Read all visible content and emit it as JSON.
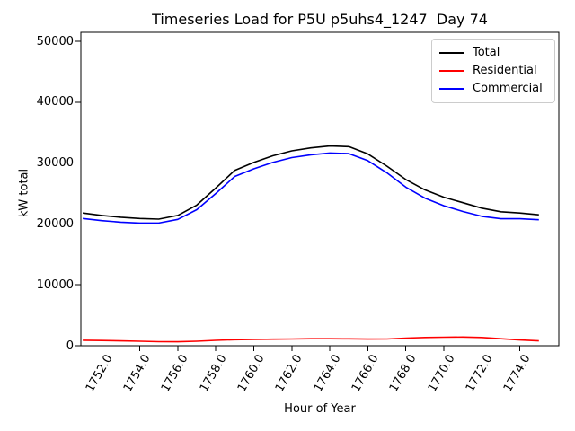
{
  "chart_data": {
    "type": "line",
    "title": "Timeseries Load for P5U p5uhs4_1247  Day 74",
    "xlabel": "Hour of Year",
    "ylabel": "kW total",
    "x": [
      1751,
      1752,
      1753,
      1754,
      1755,
      1756,
      1757,
      1758,
      1759,
      1760,
      1761,
      1762,
      1763,
      1764,
      1765,
      1766,
      1767,
      1768,
      1769,
      1770,
      1771,
      1772,
      1773,
      1774,
      1775
    ],
    "series": [
      {
        "name": "Total",
        "color": "#000000",
        "values": [
          21800,
          21400,
          21100,
          20900,
          20800,
          21400,
          23100,
          25900,
          28800,
          30100,
          31200,
          32000,
          32500,
          32800,
          32700,
          31500,
          29500,
          27300,
          25600,
          24400,
          23500,
          22600,
          22000,
          21800,
          21500
        ]
      },
      {
        "name": "Residential",
        "color": "#ff0000",
        "values": [
          900,
          850,
          790,
          740,
          670,
          650,
          740,
          890,
          990,
          1030,
          1080,
          1110,
          1150,
          1150,
          1140,
          1090,
          1110,
          1250,
          1350,
          1400,
          1430,
          1350,
          1150,
          950,
          790
        ]
      },
      {
        "name": "Commercial",
        "color": "#0000ff",
        "values": [
          20900,
          20550,
          20300,
          20150,
          20150,
          20750,
          22350,
          25000,
          27800,
          29050,
          30100,
          30900,
          31350,
          31650,
          31550,
          30400,
          28400,
          26050,
          24250,
          23000,
          22050,
          21250,
          20850,
          20850,
          20700
        ]
      }
    ],
    "xticks": [
      1752,
      1754,
      1756,
      1758,
      1760,
      1762,
      1764,
      1766,
      1768,
      1770,
      1772,
      1774
    ],
    "xtick_labels": [
      "1752.0",
      "1754.0",
      "1756.0",
      "1758.0",
      "1760.0",
      "1762.0",
      "1764.0",
      "1766.0",
      "1768.0",
      "1770.0",
      "1772.0",
      "1774.0"
    ],
    "yticks": [
      0,
      10000,
      20000,
      30000,
      40000,
      50000
    ],
    "ytick_labels": [
      "0",
      "10000",
      "20000",
      "30000",
      "40000",
      "50000"
    ],
    "xlim": [
      1750.9,
      1776.05
    ],
    "ylim": [
      0,
      51475
    ],
    "grid": false,
    "legend_position": "upper right",
    "frame": true,
    "background": "#ffffff"
  }
}
